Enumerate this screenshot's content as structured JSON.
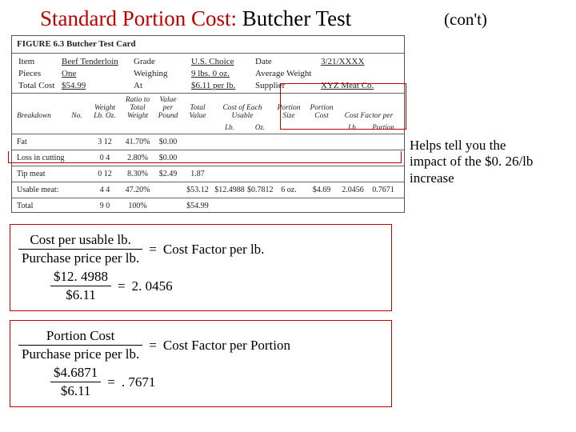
{
  "title": {
    "red": "Standard Portion Cost:",
    "black": " Butcher Test",
    "cont": "(con't)"
  },
  "card": {
    "figure": "FIGURE 6.3  Butcher Test Card",
    "hdr": {
      "item_l": "Item",
      "item_v": "Beef Tenderloin",
      "grade_l": "Grade",
      "grade_v": "U.S. Choice",
      "date_l": "Date",
      "date_v": "3/21/XXXX",
      "pieces_l": "Pieces",
      "pieces_v": "One",
      "weighing_l": "Weighing",
      "weighing_v": "9 lbs. 0 oz.",
      "avgw_l": "Average Weight",
      "avgw_v": "",
      "totcost_l": "Total Cost",
      "totcost_v": "$54.99",
      "at_l": "At",
      "at_v": "$6.11 per lb.",
      "supplier_l": "Supplier",
      "supplier_v": "XYZ Meat Co."
    },
    "bh": {
      "breakdown": "Breakdown",
      "no": "No.",
      "weight": "Weight\nLb. Oz.",
      "ratio": "Ratio to\nTotal\nWeight",
      "vpp": "Value\nper\nPound",
      "totval": "Total\nValue",
      "ceu": "Cost of Each Usable",
      "ceu_lb": "Lb.",
      "ceu_oz": "Oz.",
      "psize": "Portion\nSize",
      "pcost": "Portion\nCost",
      "cfp": "Cost Factor per",
      "cfp_lb": "Lb.",
      "cfp_port": "Portion"
    },
    "rows": [
      {
        "label": "Fat",
        "no": "",
        "w1": "3",
        "w2": "12",
        "ratio": "41.70%",
        "vpp": "$0.00",
        "totval": "",
        "ceu_lb": "",
        "ceu_oz": "",
        "psize": "",
        "pcost": "",
        "cfp_lb": "",
        "cfp_port": ""
      },
      {
        "label": "Loss in cutting",
        "no": "",
        "w1": "0",
        "w2": "4",
        "ratio": "2.80%",
        "vpp": "$0.00",
        "totval": "",
        "ceu_lb": "",
        "ceu_oz": "",
        "psize": "",
        "pcost": "",
        "cfp_lb": "",
        "cfp_port": ""
      },
      {
        "label": "Tip meat",
        "no": "",
        "w1": "0",
        "w2": "12",
        "ratio": "8.30%",
        "vpp": "$2.49",
        "totval": "1.87",
        "ceu_lb": "",
        "ceu_oz": "",
        "psize": "",
        "pcost": "",
        "cfp_lb": "",
        "cfp_port": ""
      },
      {
        "label": "Usable meat:",
        "no": "",
        "w1": "4",
        "w2": "4",
        "ratio": "47.20%",
        "vpp": "",
        "totval": "$53.12",
        "ceu_lb": "$12.4988",
        "ceu_oz": "$0.7812",
        "psize": "6 oz.",
        "pcost": "$4.69",
        "cfp_lb": "2.0456",
        "cfp_port": "0.7671"
      },
      {
        "label": "Total",
        "no": "",
        "w1": "9",
        "w2": "0",
        "ratio": "100%",
        "vpp": "",
        "totval": "$54.99",
        "ceu_lb": "",
        "ceu_oz": "",
        "psize": "",
        "pcost": "",
        "cfp_lb": "",
        "cfp_port": ""
      }
    ]
  },
  "annot": {
    "l1": "Helps tell you the",
    "l2": "impact of the $0. 26/lb increase"
  },
  "eq1": {
    "top1": "Cost per usable lb.",
    "bot1": "Purchase price per lb.",
    "rhs1": "Cost Factor per lb.",
    "top2": "$12. 4988",
    "bot2": "$6.11",
    "rhs2": "2. 0456"
  },
  "eq2": {
    "top1": "Portion Cost",
    "bot1": "Purchase price per lb.",
    "rhs1": "Cost Factor per Portion",
    "top2": "$4.6871",
    "bot2": "$6.11",
    "rhs2": ". 7671"
  }
}
